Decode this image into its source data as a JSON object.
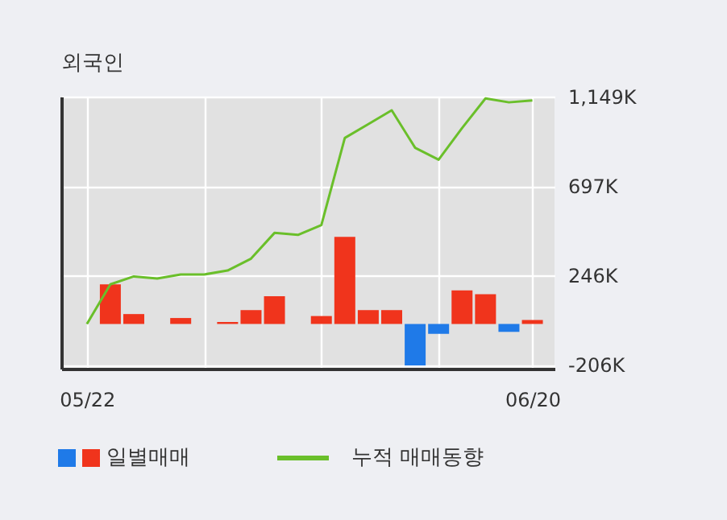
{
  "chart_data": {
    "type": "bar",
    "title": "외국인",
    "categories": [
      "05/22",
      null,
      null,
      null,
      null,
      null,
      null,
      null,
      null,
      null,
      null,
      null,
      null,
      null,
      null,
      null,
      null,
      null,
      null,
      "06/20"
    ],
    "series": [
      {
        "name": "일별매매",
        "colors": [
          "#f0341c",
          "#f0341c",
          "#f0341c",
          "#f0341c",
          "#f0341c",
          "#f0341c",
          "#f0341c",
          "#f0341c",
          "#f0341c",
          "#f0341c",
          "#f0341c",
          "#f0341c",
          "#f0341c",
          "#f0341c",
          "#1f7ae8",
          "#1f7ae8",
          "#f0341c",
          "#f0341c",
          "#1f7ae8",
          "#f0341c"
        ],
        "values": [
          null,
          200,
          50,
          null,
          30,
          null,
          10,
          70,
          140,
          null,
          40,
          440,
          70,
          70,
          -210,
          -50,
          170,
          150,
          -40,
          20
        ]
      },
      {
        "name": "누적 매매동향",
        "type": "line",
        "color": "#6abf2a",
        "values": [
          0,
          200,
          240,
          230,
          250,
          250,
          270,
          330,
          460,
          450,
          500,
          940,
          1010,
          1080,
          890,
          830,
          990,
          1140,
          1120,
          1130
        ]
      }
    ],
    "ylim": [
      -226,
      1149
    ],
    "yticks": [
      {
        "value": -206,
        "label": "-206K"
      },
      {
        "value": 246,
        "label": "246K"
      },
      {
        "value": 697,
        "label": "697K"
      },
      {
        "value": 1149,
        "label": "1,149K"
      }
    ],
    "grid": true,
    "legend": "bottom"
  }
}
